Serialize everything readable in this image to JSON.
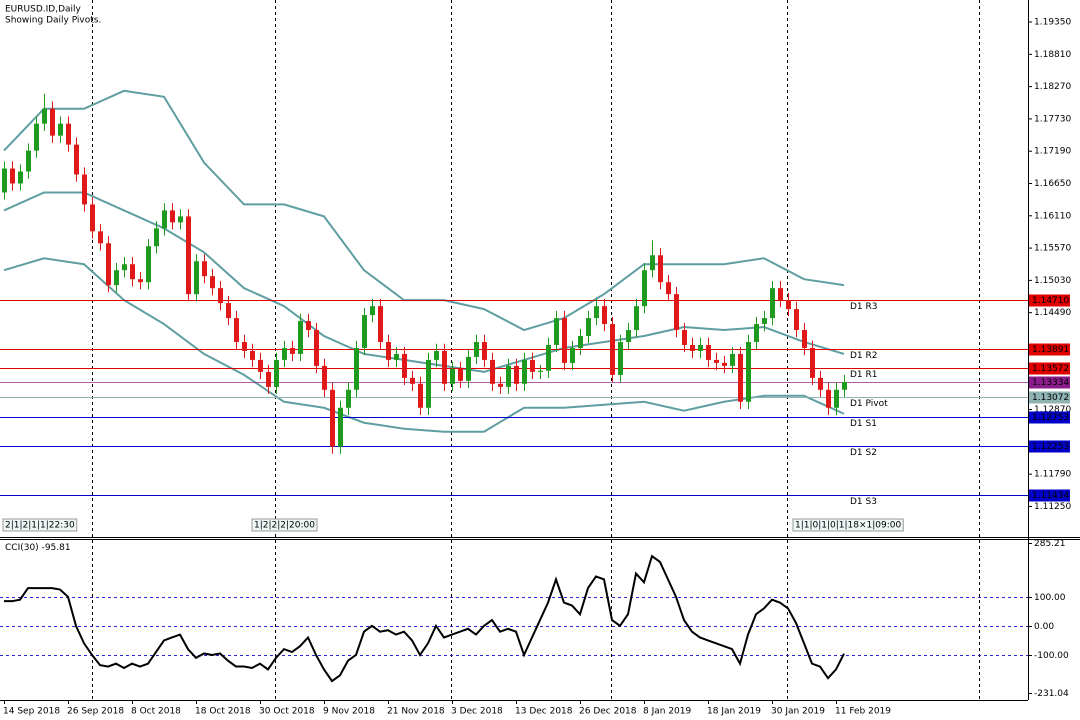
{
  "chart_data": [
    {
      "type": "candlestick",
      "title": "EURUSD.ID,Daily",
      "subtitle": "Showing Daily Pivots.",
      "categories": [
        "14 Sep 2018",
        null,
        null,
        null,
        null,
        null,
        null,
        null,
        "26 Sep 2018",
        null,
        null,
        null,
        null,
        null,
        null,
        null,
        "8 Oct 2018",
        null,
        null,
        null,
        null,
        null,
        null,
        null,
        "18 Oct 2018",
        null,
        null,
        null,
        null,
        null,
        null,
        null,
        "30 Oct 2018",
        null,
        null,
        null,
        null,
        null,
        null,
        null,
        "9 Nov 2018",
        null,
        null,
        null,
        null,
        null,
        null,
        null,
        "21 Nov 2018",
        null,
        null,
        null,
        null,
        null,
        null,
        null,
        "3 Dec 2018",
        null,
        null,
        null,
        null,
        null,
        null,
        null,
        "13 Dec 2018",
        null,
        null,
        null,
        null,
        null,
        null,
        null,
        "26 Dec 2018",
        null,
        null,
        null,
        null,
        null,
        null,
        null,
        "8 Jan 2019",
        null,
        null,
        null,
        null,
        null,
        null,
        null,
        "18 Jan 2019",
        null,
        null,
        null,
        null,
        null,
        null,
        null,
        "30 Jan 2019",
        null,
        null,
        null,
        null,
        null,
        null,
        null,
        "11 Feb 2019",
        null
      ],
      "open": [
        1.165,
        1.169,
        1.1665,
        1.1685,
        1.172,
        1.1765,
        1.179,
        1.1745,
        1.1765,
        1.173,
        1.168,
        1.163,
        1.1585,
        1.1565,
        1.1495,
        1.152,
        1.153,
        1.1505,
        1.15,
        1.156,
        1.159,
        1.162,
        1.16,
        1.161,
        1.148,
        1.1535,
        1.151,
        1.149,
        1.1465,
        1.144,
        1.14,
        1.1385,
        1.137,
        1.135,
        1.1325,
        1.137,
        1.139,
        1.138,
        1.1435,
        1.142,
        1.136,
        1.132,
        1.1225,
        1.129,
        1.132,
        1.139,
        1.1445,
        1.146,
        1.14,
        1.137,
        1.138,
        1.134,
        1.133,
        1.129,
        1.137,
        1.1385,
        1.133,
        1.1355,
        1.1335,
        1.1375,
        1.14,
        1.137,
        1.133,
        1.1325,
        1.136,
        1.133,
        1.137,
        1.135,
        1.1352,
        1.1395,
        1.144,
        1.1365,
        1.139,
        1.141,
        1.144,
        1.146,
        1.143,
        1.1345,
        1.14,
        1.142,
        1.146,
        1.152,
        1.1545,
        1.15,
        1.148,
        1.142,
        1.1395,
        1.1385,
        1.1395,
        1.137,
        1.1365,
        1.136,
        1.138,
        1.13,
        1.14,
        1.143,
        1.144,
        1.149,
        1.147,
        1.1455,
        1.142,
        1.139,
        1.134,
        1.132,
        1.129,
        1.132
      ],
      "high": [
        1.1702,
        1.1702,
        1.1697,
        1.1732,
        1.1777,
        1.1815,
        1.1802,
        1.1777,
        1.1777,
        1.1742,
        1.1692,
        1.1642,
        1.1597,
        1.1577,
        1.1532,
        1.1542,
        1.1542,
        1.1517,
        1.1572,
        1.1602,
        1.1632,
        1.1632,
        1.1622,
        1.1622,
        1.1547,
        1.1547,
        1.1522,
        1.1502,
        1.1477,
        1.1452,
        1.1412,
        1.1397,
        1.1382,
        1.1362,
        1.1382,
        1.1402,
        1.1402,
        1.1447,
        1.1447,
        1.1432,
        1.1372,
        1.1332,
        1.1302,
        1.1332,
        1.1402,
        1.1457,
        1.1472,
        1.1472,
        1.1412,
        1.1392,
        1.1392,
        1.1352,
        1.1342,
        1.1382,
        1.1397,
        1.1397,
        1.1367,
        1.1367,
        1.1387,
        1.1412,
        1.1412,
        1.1382,
        1.1342,
        1.1372,
        1.1372,
        1.1382,
        1.1382,
        1.1362,
        1.1407,
        1.1452,
        1.1452,
        1.1402,
        1.1422,
        1.1452,
        1.1472,
        1.1472,
        1.1442,
        1.1412,
        1.1432,
        1.1472,
        1.1532,
        1.157,
        1.1557,
        1.1512,
        1.1492,
        1.1432,
        1.1407,
        1.1407,
        1.1407,
        1.1382,
        1.1377,
        1.1392,
        1.1392,
        1.1412,
        1.1442,
        1.1452,
        1.1502,
        1.1502,
        1.1482,
        1.1467,
        1.1432,
        1.1402,
        1.1352,
        1.1332,
        1.1332,
        1.1345
      ],
      "low": [
        1.1638,
        1.1653,
        1.1653,
        1.1673,
        1.1708,
        1.1753,
        1.1733,
        1.1733,
        1.1718,
        1.1668,
        1.1618,
        1.1573,
        1.1553,
        1.1483,
        1.1483,
        1.1508,
        1.1493,
        1.1488,
        1.1488,
        1.1548,
        1.1578,
        1.1588,
        1.1588,
        1.1468,
        1.1468,
        1.1498,
        1.1478,
        1.1453,
        1.1428,
        1.1388,
        1.1373,
        1.1358,
        1.1338,
        1.1313,
        1.1313,
        1.1358,
        1.1368,
        1.1368,
        1.1408,
        1.1348,
        1.1308,
        1.1213,
        1.1213,
        1.1278,
        1.1308,
        1.1378,
        1.1433,
        1.1388,
        1.1358,
        1.1358,
        1.1328,
        1.1318,
        1.1278,
        1.1278,
        1.1358,
        1.1318,
        1.1318,
        1.1323,
        1.1323,
        1.1363,
        1.1358,
        1.1318,
        1.1313,
        1.1313,
        1.1318,
        1.1318,
        1.1338,
        1.1338,
        1.134,
        1.1383,
        1.1353,
        1.1353,
        1.1378,
        1.1398,
        1.1428,
        1.1418,
        1.1333,
        1.1333,
        1.1388,
        1.1408,
        1.1448,
        1.1508,
        1.1488,
        1.1468,
        1.1408,
        1.1383,
        1.1373,
        1.1373,
        1.1358,
        1.1353,
        1.1348,
        1.1348,
        1.1288,
        1.1288,
        1.1388,
        1.1418,
        1.1428,
        1.1458,
        1.1443,
        1.1408,
        1.1378,
        1.1328,
        1.1308,
        1.1278,
        1.1278,
        1.1308
      ],
      "close": [
        1.169,
        1.1665,
        1.1685,
        1.172,
        1.1765,
        1.179,
        1.1745,
        1.1765,
        1.173,
        1.168,
        1.163,
        1.1585,
        1.1565,
        1.1495,
        1.152,
        1.153,
        1.1505,
        1.15,
        1.156,
        1.159,
        1.162,
        1.16,
        1.161,
        1.148,
        1.1535,
        1.151,
        1.149,
        1.1465,
        1.144,
        1.14,
        1.1385,
        1.137,
        1.135,
        1.1325,
        1.137,
        1.139,
        1.138,
        1.1435,
        1.142,
        1.136,
        1.132,
        1.1225,
        1.129,
        1.132,
        1.139,
        1.1445,
        1.146,
        1.14,
        1.137,
        1.138,
        1.134,
        1.133,
        1.129,
        1.137,
        1.1385,
        1.133,
        1.1355,
        1.1335,
        1.1375,
        1.14,
        1.137,
        1.133,
        1.1325,
        1.136,
        1.133,
        1.137,
        1.135,
        1.1352,
        1.1395,
        1.144,
        1.1365,
        1.139,
        1.141,
        1.144,
        1.146,
        1.143,
        1.1345,
        1.14,
        1.142,
        1.146,
        1.152,
        1.1545,
        1.15,
        1.148,
        1.142,
        1.1395,
        1.1385,
        1.1395,
        1.137,
        1.1365,
        1.136,
        1.138,
        1.13,
        1.14,
        1.143,
        1.144,
        1.149,
        1.147,
        1.1455,
        1.142,
        1.139,
        1.134,
        1.132,
        1.129,
        1.132,
        1.1333
      ],
      "up_color": "#1e9a1e",
      "down_color": "#e01818",
      "ylim": [
        1.10756,
        1.19718
      ],
      "yticks": [
        {
          "value": 1.1935,
          "label": "1.19350"
        },
        {
          "value": 1.1881,
          "label": "1.18810"
        },
        {
          "value": 1.1827,
          "label": "1.18270"
        },
        {
          "value": 1.1773,
          "label": "1.17730"
        },
        {
          "value": 1.1719,
          "label": "1.17190"
        },
        {
          "value": 1.1665,
          "label": "1.16650"
        },
        {
          "value": 1.1611,
          "label": "1.16110"
        },
        {
          "value": 1.1557,
          "label": "1.15570"
        },
        {
          "value": 1.1503,
          "label": "1.15030"
        },
        {
          "value": 1.1449,
          "label": "1.14490"
        },
        {
          "value": 1.1287,
          "label": "1.12870"
        },
        {
          "value": 1.1179,
          "label": "1.11790"
        },
        {
          "value": 1.1125,
          "label": "1.11250"
        }
      ],
      "bands": {
        "color": "#5f9ea0",
        "x": [
          0,
          5,
          10,
          15,
          20,
          25,
          30,
          35,
          40,
          45,
          50,
          55,
          60,
          65,
          70,
          75,
          80,
          85,
          90,
          95,
          100,
          105
        ],
        "upper": [
          1.172,
          1.179,
          1.179,
          1.182,
          1.181,
          1.17,
          1.163,
          1.163,
          1.161,
          1.152,
          1.147,
          1.147,
          1.1455,
          1.142,
          1.144,
          1.148,
          1.153,
          1.153,
          1.153,
          1.154,
          1.1505,
          1.1495
        ],
        "middle": [
          1.162,
          1.165,
          1.165,
          1.162,
          1.159,
          1.155,
          1.149,
          1.146,
          1.141,
          1.138,
          1.137,
          1.136,
          1.135,
          1.137,
          1.139,
          1.14,
          1.141,
          1.1425,
          1.142,
          1.1425,
          1.14,
          1.138
        ],
        "lower": [
          1.152,
          1.154,
          1.153,
          1.147,
          1.143,
          1.138,
          1.1345,
          1.13,
          1.129,
          1.1265,
          1.1255,
          1.125,
          1.125,
          1.129,
          1.129,
          1.1295,
          1.13,
          1.1285,
          1.13,
          1.131,
          1.131,
          1.128
        ]
      },
      "levels": [
        {
          "name": "D1 R3",
          "value": 1.1471,
          "value_label": "1.14710",
          "color": "#e00000"
        },
        {
          "name": "D1 R2",
          "value": 1.13891,
          "value_label": "1.13891",
          "color": "#e00000"
        },
        {
          "name": "D1 R1",
          "value": 1.13572,
          "value_label": "1.13572",
          "color": "#e00000"
        },
        {
          "name": "D1 Pivot",
          "value": 1.13072,
          "value_label": "1.13072",
          "color": "#8fb2b2"
        },
        {
          "name": "D1 S1",
          "value": 1.12753,
          "value_label": "1.12753",
          "color": "#0000c8"
        },
        {
          "name": "D1 S2",
          "value": 1.12253,
          "value_label": "1.12253",
          "color": "#0000c8"
        },
        {
          "name": "D1 S3",
          "value": 1.11434,
          "value_label": "1.11434",
          "color": "#0000c8"
        }
      ],
      "current": {
        "value": 1.13334,
        "label": "1.13334",
        "color": "#8b1c8b"
      },
      "annotations": [
        "2|1|2|1|1|22:30",
        "1|2|2|2|20:00",
        "1|1|0|1|0|1|18×1|09:00"
      ]
    },
    {
      "type": "line",
      "name": "CCI(30)",
      "color": "#000000",
      "values": [
        85,
        85,
        90,
        130,
        130,
        130,
        130,
        125,
        100,
        0,
        -60,
        -100,
        -135,
        -140,
        -130,
        -145,
        -130,
        -140,
        -130,
        -90,
        -50,
        -40,
        -30,
        -80,
        -110,
        -95,
        -100,
        -95,
        -120,
        -140,
        -140,
        -145,
        -130,
        -150,
        -110,
        -80,
        -90,
        -70,
        -40,
        -100,
        -150,
        -190,
        -170,
        -120,
        -100,
        -20,
        0,
        -20,
        -15,
        -30,
        -20,
        -50,
        -100,
        -60,
        0,
        -40,
        -30,
        -20,
        -10,
        -30,
        0,
        20,
        -20,
        -10,
        -20,
        -100,
        -40,
        20,
        80,
        160,
        80,
        70,
        40,
        130,
        170,
        160,
        20,
        0,
        40,
        180,
        150,
        240,
        220,
        160,
        100,
        20,
        -20,
        -40,
        -50,
        -60,
        -70,
        -80,
        -130,
        -30,
        40,
        60,
        90,
        80,
        60,
        10,
        -60,
        -130,
        -140,
        -180,
        -150,
        -95.81
      ],
      "ylim": [
        -231.04,
        285.21
      ],
      "yticks": [
        285.21,
        {
          "value": 100,
          "label": "100.00"
        },
        {
          "value": 0,
          "label": "0.00"
        },
        {
          "value": -100,
          "label": "-100.00"
        },
        -231.04
      ],
      "grid_color": "#2a2ad0"
    }
  ]
}
